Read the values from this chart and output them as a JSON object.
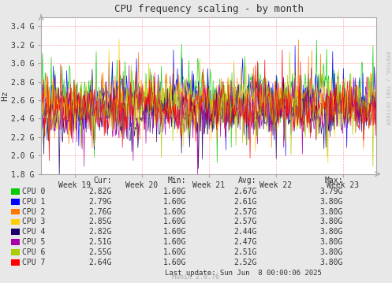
{
  "title": "CPU frequency scaling - by month",
  "ylabel": "Hz",
  "watermark": "Munin 2.0.76",
  "rrdtool_label": "RRDTOOL / TOBI OETIKER",
  "bg_color": "#e8e8e8",
  "plot_bg_color": "#ffffff",
  "grid_color": "#ffaaaa",
  "axis_color": "#aaaaaa",
  "ytick_labels": [
    "1.8 G",
    "2.0 G",
    "2.2 G",
    "2.4 G",
    "2.6 G",
    "2.8 G",
    "3.0 G",
    "3.2 G",
    "3.4 G"
  ],
  "ytick_values": [
    1800000000,
    2000000000,
    2200000000,
    2400000000,
    2600000000,
    2800000000,
    3000000000,
    3200000000,
    3400000000
  ],
  "ylim_lo": 1800000000,
  "ylim_hi": 3500000000,
  "xtick_labels": [
    "Week 19",
    "Week 20",
    "Week 21",
    "Week 22",
    "Week 23"
  ],
  "xtick_pos": [
    0.1,
    0.3,
    0.5,
    0.7,
    0.9
  ],
  "cpus": [
    "CPU 0",
    "CPU 1",
    "CPU 2",
    "CPU 3",
    "CPU 4",
    "CPU 5",
    "CPU 6",
    "CPU 7"
  ],
  "cpu_colors": [
    "#00cc00",
    "#0000ff",
    "#ff7700",
    "#ffcc00",
    "#1a0066",
    "#aa00aa",
    "#aacc00",
    "#ff0000"
  ],
  "legend_cur": [
    "2.82G",
    "2.79G",
    "2.76G",
    "2.85G",
    "2.82G",
    "2.51G",
    "2.55G",
    "2.64G"
  ],
  "legend_min": [
    "1.60G",
    "1.60G",
    "1.60G",
    "1.60G",
    "1.60G",
    "1.60G",
    "1.60G",
    "1.60G"
  ],
  "legend_avg": [
    "2.67G",
    "2.61G",
    "2.57G",
    "2.57G",
    "2.44G",
    "2.47G",
    "2.51G",
    "2.52G"
  ],
  "legend_max": [
    "3.79G",
    "3.80G",
    "3.80G",
    "3.80G",
    "3.80G",
    "3.80G",
    "3.80G",
    "3.80G"
  ],
  "last_update": "Last update: Sun Jun  8 00:00:06 2025",
  "n_points": 500,
  "avg_values": [
    2670000000,
    2610000000,
    2570000000,
    2570000000,
    2440000000,
    2470000000,
    2510000000,
    2520000000
  ],
  "min_val": 1600000000,
  "max_val": 3800000000
}
